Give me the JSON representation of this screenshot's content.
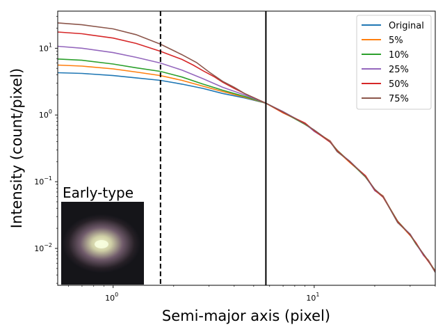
{
  "chart_data": {
    "type": "line",
    "xlabel": "Semi-major axis (pixel)",
    "ylabel": "Intensity (count/pixel)",
    "xscale": "log",
    "yscale": "log",
    "xlim": [
      0.53,
      40
    ],
    "ylim": [
      0.0028,
      36
    ],
    "x_ticks": [
      {
        "value": 1,
        "base": "10",
        "exp": "0"
      },
      {
        "value": 10,
        "base": "10",
        "exp": "1"
      }
    ],
    "y_ticks": [
      {
        "value": 0.01,
        "base": "10",
        "exp": "−2"
      },
      {
        "value": 0.1,
        "base": "10",
        "exp": "−1"
      },
      {
        "value": 1,
        "base": "10",
        "exp": "0"
      },
      {
        "value": 10,
        "base": "10",
        "exp": "1"
      }
    ],
    "vlines": [
      {
        "x": 1.72,
        "style": "dashed"
      },
      {
        "x": 5.75,
        "style": "solid"
      }
    ],
    "legend_position": "top-right",
    "inset": {
      "label": "Early-type",
      "position": "bottom-left"
    },
    "series": [
      {
        "name": "Original",
        "color": "#1f77b4",
        "x": [
          0.53,
          0.7,
          1.0,
          1.3,
          1.72,
          2.2,
          2.8,
          3.5,
          4.5,
          5.75
        ],
        "y": [
          4.3,
          4.2,
          3.9,
          3.6,
          3.3,
          2.9,
          2.5,
          2.1,
          1.8,
          1.5
        ]
      },
      {
        "name": "5%",
        "color": "#ff7f0e",
        "x": [
          0.53,
          0.7,
          1.0,
          1.3,
          1.72,
          2.2,
          2.8,
          3.5,
          4.5,
          5.75
        ],
        "y": [
          5.6,
          5.4,
          4.9,
          4.4,
          3.9,
          3.3,
          2.7,
          2.25,
          1.85,
          1.5
        ]
      },
      {
        "name": "10%",
        "color": "#2ca02c",
        "x": [
          0.53,
          0.7,
          1.0,
          1.3,
          1.72,
          2.2,
          2.8,
          3.5,
          4.5,
          5.75
        ],
        "y": [
          6.9,
          6.6,
          5.8,
          5.1,
          4.5,
          3.7,
          2.9,
          2.35,
          1.9,
          1.5
        ]
      },
      {
        "name": "25%",
        "color": "#9467bd",
        "x": [
          0.53,
          0.7,
          1.0,
          1.3,
          1.72,
          2.2,
          2.8,
          3.5,
          4.5,
          5.75
        ],
        "y": [
          10.7,
          10.0,
          8.6,
          7.3,
          6.0,
          4.7,
          3.5,
          2.6,
          2.0,
          1.5
        ]
      },
      {
        "name": "50%",
        "color": "#d62728",
        "x": [
          0.53,
          0.7,
          1.0,
          1.3,
          1.72,
          2.2,
          2.5,
          2.8,
          3.2,
          3.5,
          4.0,
          4.5,
          5.75
        ],
        "y": [
          17.5,
          16.5,
          14.2,
          11.8,
          9.0,
          6.8,
          5.6,
          4.6,
          3.7,
          3.1,
          2.5,
          2.1,
          1.5
        ]
      },
      {
        "name": "75%",
        "color": "#8c564b",
        "x": [
          0.53,
          0.7,
          1.0,
          1.3,
          1.72,
          2.2,
          2.6,
          3.0,
          3.5,
          4.0,
          4.5,
          5.75
        ],
        "y": [
          24.0,
          22.5,
          19.5,
          16.0,
          11.5,
          8.0,
          6.1,
          4.4,
          3.2,
          2.6,
          2.1,
          1.5
        ]
      }
    ],
    "shared_tail": {
      "x": [
        5.75,
        7,
        9,
        10,
        12,
        13,
        15,
        18,
        20,
        22,
        26,
        30,
        32,
        35,
        37,
        40
      ],
      "y": [
        1.5,
        1.1,
        0.74,
        0.58,
        0.4,
        0.29,
        0.2,
        0.12,
        0.075,
        0.06,
        0.025,
        0.016,
        0.012,
        0.008,
        0.0065,
        0.0045
      ]
    }
  }
}
